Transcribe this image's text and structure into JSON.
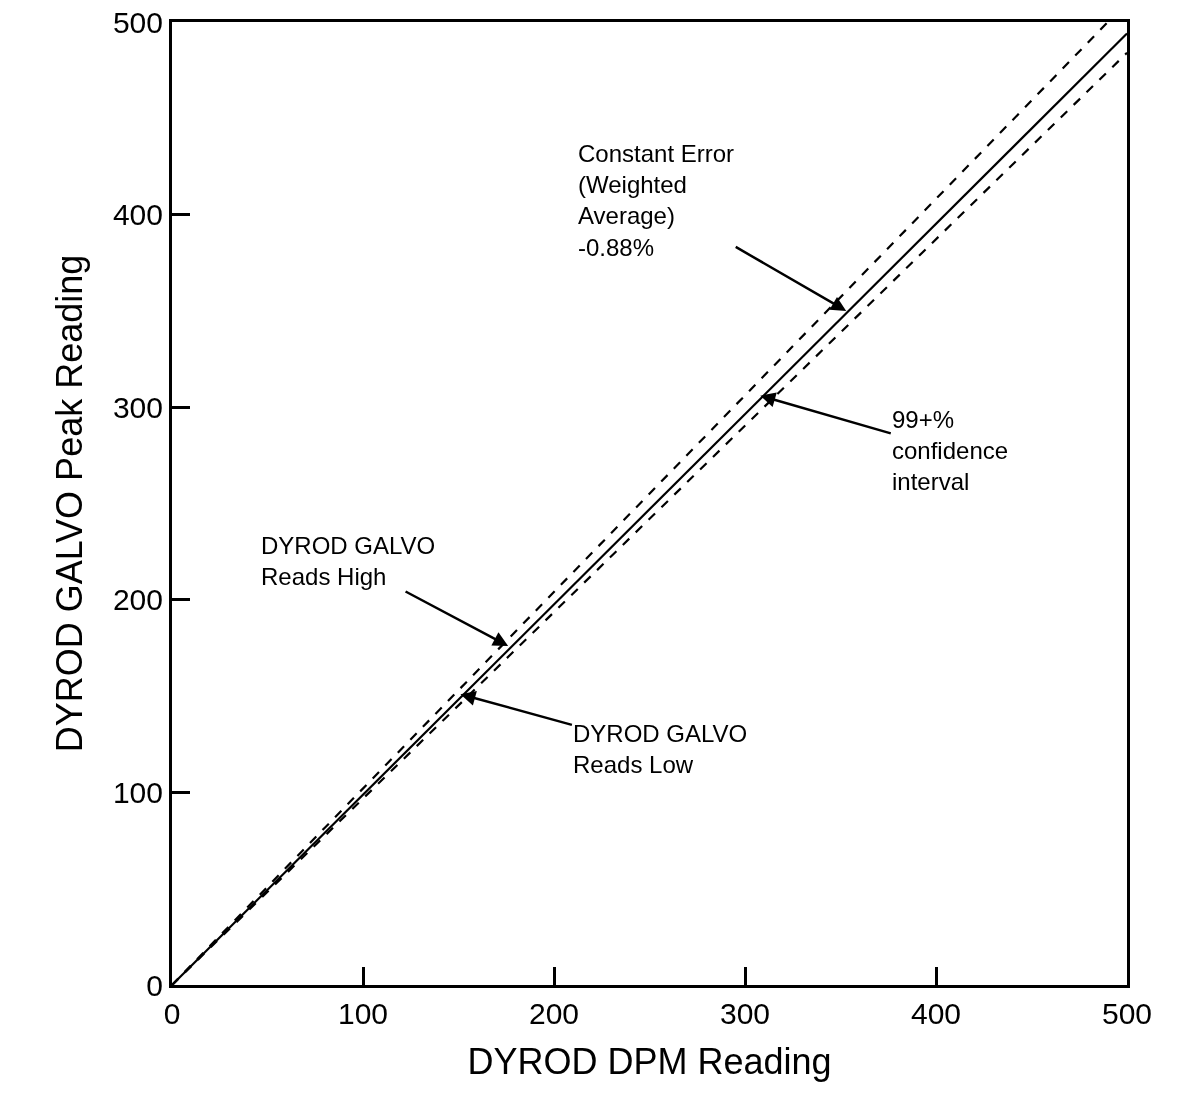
{
  "chart_data": {
    "type": "line",
    "xlabel": "DYROD DPM Reading",
    "ylabel": "DYROD GALVO Peak Reading",
    "xlim": [
      0,
      500
    ],
    "ylim": [
      0,
      500
    ],
    "xticks": [
      0,
      100,
      200,
      300,
      400,
      500
    ],
    "yticks": [
      0,
      100,
      200,
      300,
      400,
      500
    ],
    "grid": false,
    "marker": "none",
    "series": [
      {
        "color": "#000000",
        "line_style": "dashed",
        "x": [
          0,
          490
        ],
        "values": [
          0,
          500
        ]
      },
      {
        "color": "#000000",
        "line_style": "solid",
        "x": [
          0,
          500
        ],
        "values": [
          0,
          494
        ]
      },
      {
        "color": "#000000",
        "line_style": "dashed",
        "x": [
          0,
          500
        ],
        "values": [
          0,
          484
        ]
      }
    ],
    "annotations": [
      {
        "text": "Constant Error\n(Weighted\nAverage)\n-0.88%",
        "x": 353,
        "y": 350
      },
      {
        "text": "99+%\nconfidence\ninterval",
        "x": 308,
        "y": 306
      },
      {
        "text": "DYROD GALVO\nReads High",
        "x": 176,
        "y": 176
      },
      {
        "text": "DYROD GALVO\nReads Low",
        "x": 151,
        "y": 151
      }
    ]
  }
}
